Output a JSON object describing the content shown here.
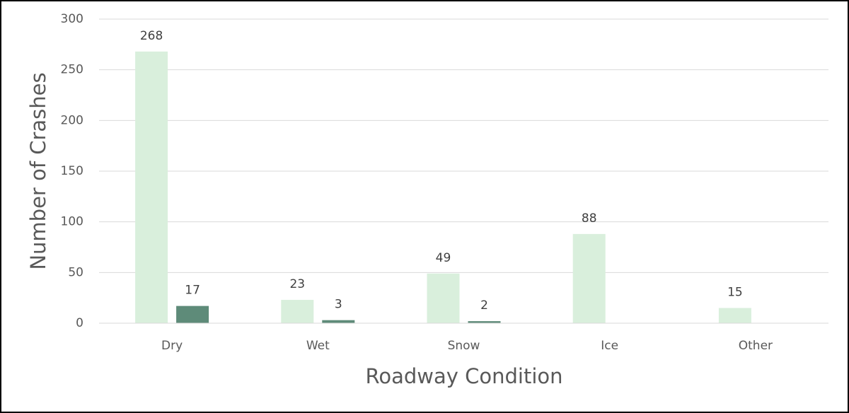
{
  "chart_data": {
    "type": "bar",
    "x_label": "Roadway Condition",
    "y_label": "Number of Crashes",
    "categories": [
      "Dry",
      "Wet",
      "Snow",
      "Ice",
      "Other"
    ],
    "series": [
      {
        "color": "#d9efdc",
        "values": [
          268,
          23,
          49,
          88,
          15
        ]
      },
      {
        "color": "#5e8b79",
        "values": [
          17,
          3,
          2,
          null,
          null
        ]
      }
    ],
    "ylim": [
      0,
      300
    ],
    "yticks": [
      0,
      50,
      100,
      150,
      200,
      250,
      300
    ],
    "grid": true
  }
}
